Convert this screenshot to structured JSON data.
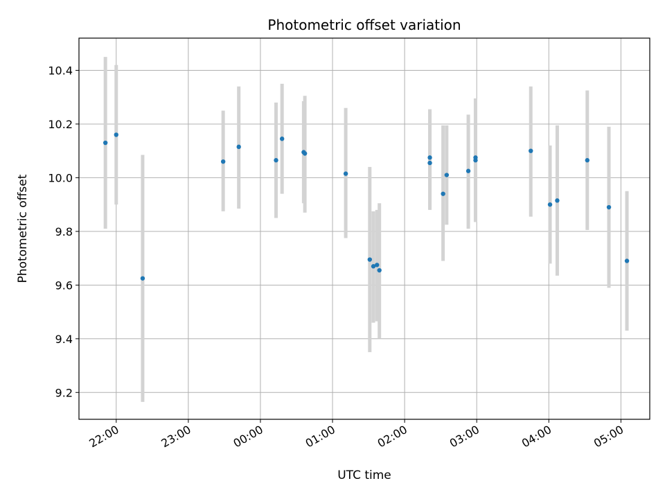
{
  "chart_data": {
    "type": "scatter",
    "title": "Photometric offset variation",
    "xlabel": "UTC time",
    "ylabel": "Photometric offset",
    "x_ticks": [
      "22:00",
      "23:00",
      "00:00",
      "01:00",
      "02:00",
      "03:00",
      "04:00",
      "05:00"
    ],
    "y_ticks": [
      "9.2",
      "9.4",
      "9.6",
      "9.8",
      "10.0",
      "10.2",
      "10.4"
    ],
    "ylim": [
      9.1,
      10.52
    ],
    "xlim": [
      "21:29",
      "05:24"
    ],
    "grid": true,
    "marker_color": "#1f77b4",
    "errorbar_color": "#d3d3d3",
    "points": [
      {
        "x": "21:51",
        "y": 10.13,
        "lo": 9.81,
        "hi": 10.45
      },
      {
        "x": "22:00",
        "y": 10.16,
        "lo": 9.9,
        "hi": 10.42
      },
      {
        "x": "22:22",
        "y": 9.625,
        "lo": 9.165,
        "hi": 10.085
      },
      {
        "x": "23:29",
        "y": 10.06,
        "lo": 9.875,
        "hi": 10.25
      },
      {
        "x": "23:42",
        "y": 10.115,
        "lo": 9.885,
        "hi": 10.34
      },
      {
        "x": "00:13",
        "y": 10.065,
        "lo": 9.85,
        "hi": 10.28
      },
      {
        "x": "00:18",
        "y": 10.145,
        "lo": 9.94,
        "hi": 10.35
      },
      {
        "x": "00:36",
        "y": 10.095,
        "lo": 9.905,
        "hi": 10.285
      },
      {
        "x": "00:37",
        "y": 10.09,
        "lo": 9.87,
        "hi": 10.305
      },
      {
        "x": "01:11",
        "y": 10.015,
        "lo": 9.775,
        "hi": 10.26
      },
      {
        "x": "01:31",
        "y": 9.695,
        "lo": 9.35,
        "hi": 10.04
      },
      {
        "x": "01:34",
        "y": 9.67,
        "lo": 9.46,
        "hi": 9.875
      },
      {
        "x": "01:37",
        "y": 9.675,
        "lo": 9.465,
        "hi": 9.88
      },
      {
        "x": "01:39",
        "y": 9.655,
        "lo": 9.4,
        "hi": 9.905
      },
      {
        "x": "02:21",
        "y": 10.075,
        "lo": 9.89,
        "hi": 10.255
      },
      {
        "x": "02:21",
        "y": 10.055,
        "lo": 9.88,
        "hi": 10.23
      },
      {
        "x": "02:32",
        "y": 9.94,
        "lo": 9.69,
        "hi": 10.195
      },
      {
        "x": "02:35",
        "y": 10.01,
        "lo": 9.825,
        "hi": 10.195
      },
      {
        "x": "02:53",
        "y": 10.025,
        "lo": 9.81,
        "hi": 10.235
      },
      {
        "x": "02:59",
        "y": 10.065,
        "lo": 9.835,
        "hi": 10.295
      },
      {
        "x": "02:59",
        "y": 10.075,
        "lo": 9.84,
        "hi": 10.295
      },
      {
        "x": "03:45",
        "y": 10.1,
        "lo": 9.855,
        "hi": 10.34
      },
      {
        "x": "04:01",
        "y": 9.9,
        "lo": 9.68,
        "hi": 10.12
      },
      {
        "x": "04:07",
        "y": 9.915,
        "lo": 9.635,
        "hi": 10.195
      },
      {
        "x": "04:32",
        "y": 10.065,
        "lo": 9.805,
        "hi": 10.325
      },
      {
        "x": "04:50",
        "y": 9.89,
        "lo": 9.59,
        "hi": 10.19
      },
      {
        "x": "05:05",
        "y": 9.69,
        "lo": 9.43,
        "hi": 9.95
      }
    ]
  }
}
